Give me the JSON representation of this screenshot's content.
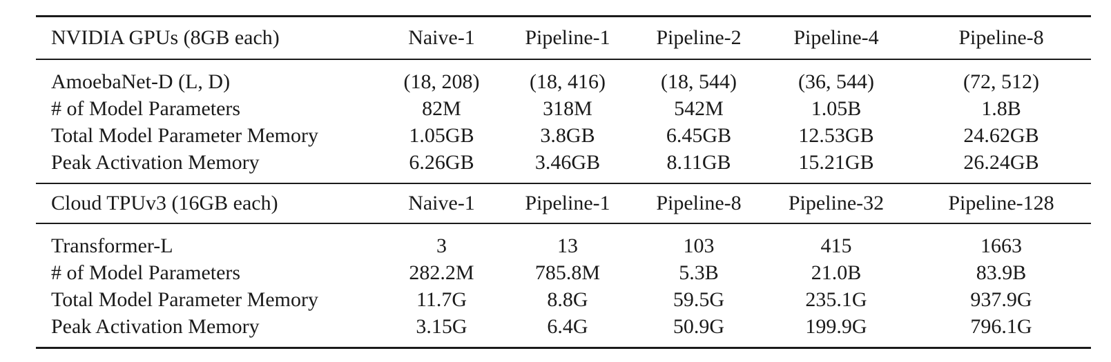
{
  "table": {
    "sections": [
      {
        "header": [
          "NVIDIA GPUs (8GB each)",
          "Naive-1",
          "Pipeline-1",
          "Pipeline-2",
          "Pipeline-4",
          "Pipeline-8"
        ],
        "rows": [
          [
            "AmoebaNet-D (L, D)",
            "(18, 208)",
            "(18, 416)",
            "(18, 544)",
            "(36, 544)",
            "(72, 512)"
          ],
          [
            "# of Model Parameters",
            "82M",
            "318M",
            "542M",
            "1.05B",
            "1.8B"
          ],
          [
            "Total Model Parameter Memory",
            "1.05GB",
            "3.8GB",
            "6.45GB",
            "12.53GB",
            "24.62GB"
          ],
          [
            "Peak Activation Memory",
            "6.26GB",
            "3.46GB",
            "8.11GB",
            "15.21GB",
            "26.24GB"
          ]
        ]
      },
      {
        "header": [
          "Cloud TPUv3 (16GB each)",
          "Naive-1",
          "Pipeline-1",
          "Pipeline-8",
          "Pipeline-32",
          "Pipeline-128"
        ],
        "rows": [
          [
            "Transformer-L",
            "3",
            "13",
            "103",
            "415",
            "1663"
          ],
          [
            "# of Model Parameters",
            "282.2M",
            "785.8M",
            "5.3B",
            "21.0B",
            "83.9B"
          ],
          [
            "Total Model Parameter Memory",
            "11.7G",
            "8.8G",
            "59.5G",
            "235.1G",
            "937.9G"
          ],
          [
            "Peak Activation Memory",
            "3.15G",
            "6.4G",
            "50.9G",
            "199.9G",
            "796.1G"
          ]
        ]
      }
    ]
  }
}
